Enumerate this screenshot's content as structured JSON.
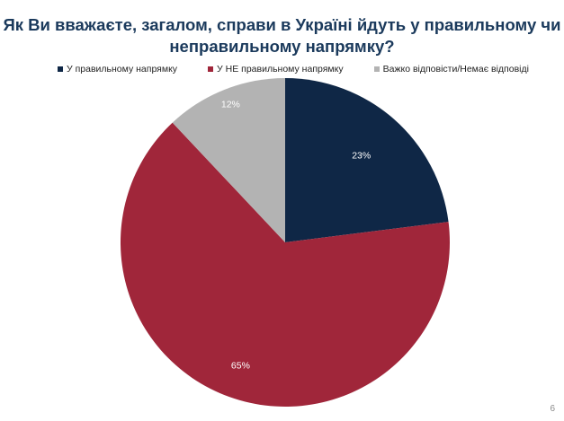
{
  "chart_data": {
    "type": "pie",
    "title_lines": [
      "Як Ви вважаєте, загалом, справи в Україні йдуть у правильному чи",
      "неправильному напрямку?"
    ],
    "categories": [
      "У правильному напрямку",
      "У НЕ правильному напрямку",
      "Важко відповісти/Немає відповіді"
    ],
    "values": [
      23,
      65,
      12
    ],
    "data_labels": [
      "23%",
      "65%",
      "12%"
    ],
    "colors": [
      "#0f2746",
      "#a0263a",
      "#b3b3b3"
    ],
    "label_colors": [
      "#ffffff",
      "#ffffff",
      "#ffffff"
    ],
    "start_angle_deg": 0,
    "direction": "clockwise",
    "legend_position": "top"
  },
  "page_number": "6"
}
